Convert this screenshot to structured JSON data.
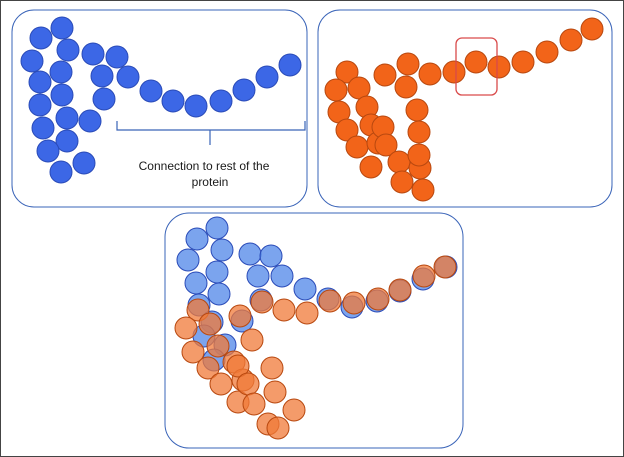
{
  "colors": {
    "panel_border": "#3a64b8",
    "blue_bead": "#3c67e6",
    "blue_bead_stroke": "#2a4bb8",
    "orange_bead": "#f26419",
    "orange_bead_stroke": "#b8480f",
    "overlay_blue": "#4f86e8",
    "overlay_orange": "#f07a38",
    "highlight_box": "#d94a4a",
    "bracket": "#3a64b8"
  },
  "annotation": {
    "line1": "Connection to rest of the",
    "line2": "protein"
  }
}
